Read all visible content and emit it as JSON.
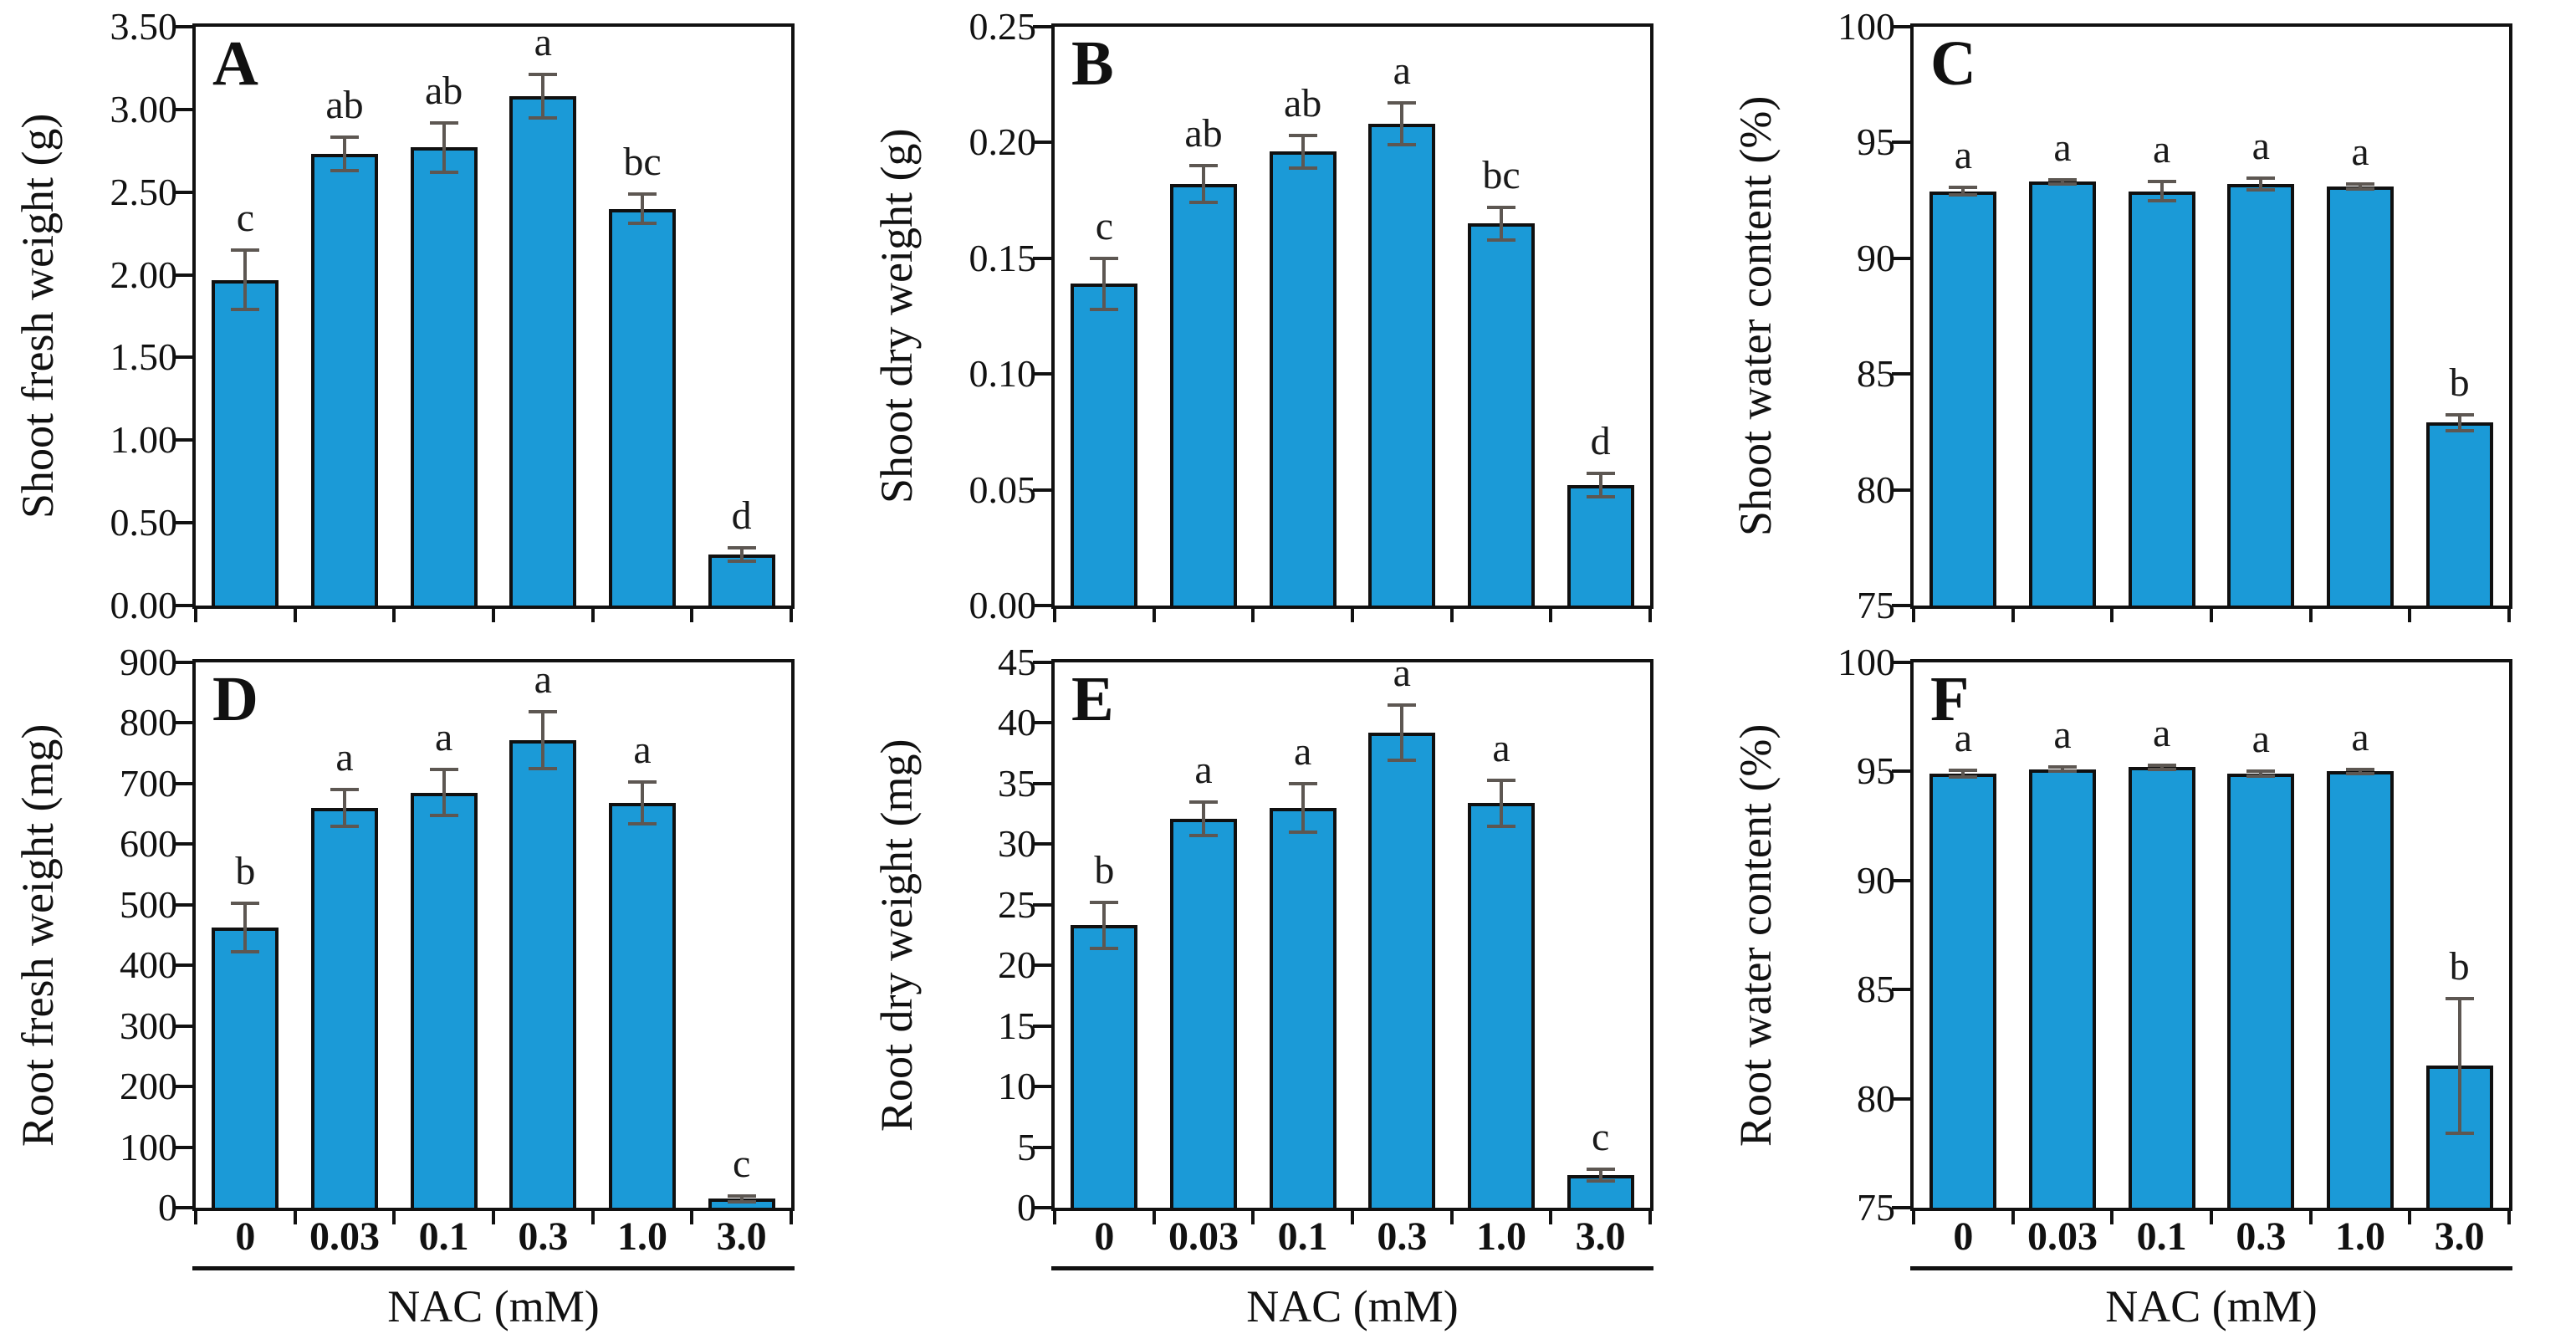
{
  "figure": {
    "layout": {
      "rows": 2,
      "cols": 3,
      "grid": "off",
      "legend": "none"
    },
    "x_axis_title": "NAC (mM)",
    "categories": [
      "0",
      "0.03",
      "0.1",
      "0.3",
      "1.0",
      "3.0"
    ]
  },
  "style": {
    "bar_fill": "#1b9ad7",
    "bar_edge": "#101010",
    "error_bar_color": "#5d5752",
    "axis_color": "#111111",
    "background": "#ffffff",
    "text_color": "#111111"
  },
  "chart_data": [
    {
      "type": "bar",
      "panel": "A",
      "ylabel": "Shoot fresh weight (g)",
      "categories": [
        "0",
        "0.03",
        "0.1",
        "0.3",
        "1.0",
        "3.0"
      ],
      "values": [
        1.97,
        2.73,
        2.77,
        3.08,
        2.4,
        0.31
      ],
      "errors": [
        0.18,
        0.1,
        0.15,
        0.13,
        0.09,
        0.04
      ],
      "sig_letters": [
        "c",
        "ab",
        "ab",
        "a",
        "bc",
        "d"
      ],
      "ylim": [
        0,
        3.5
      ],
      "ytick_step": 0.5,
      "ytick_decimals": 2,
      "show_x_tick_labels": false,
      "show_x_title": false
    },
    {
      "type": "bar",
      "panel": "B",
      "ylabel": "Shoot dry weight (g)",
      "categories": [
        "0",
        "0.03",
        "0.1",
        "0.3",
        "1.0",
        "3.0"
      ],
      "values": [
        0.139,
        0.182,
        0.196,
        0.208,
        0.165,
        0.052
      ],
      "errors": [
        0.011,
        0.008,
        0.007,
        0.009,
        0.007,
        0.005
      ],
      "sig_letters": [
        "c",
        "ab",
        "ab",
        "a",
        "bc",
        "d"
      ],
      "ylim": [
        0,
        0.25
      ],
      "ytick_step": 0.05,
      "ytick_decimals": 2,
      "show_x_tick_labels": false,
      "show_x_title": false
    },
    {
      "type": "bar",
      "panel": "C",
      "ylabel": "Shoot water content (%)",
      "categories": [
        "0",
        "0.03",
        "0.1",
        "0.3",
        "1.0",
        "3.0"
      ],
      "values": [
        92.9,
        93.3,
        92.9,
        93.2,
        93.1,
        82.9
      ],
      "errors": [
        0.15,
        0.1,
        0.4,
        0.25,
        0.1,
        0.35
      ],
      "sig_letters": [
        "a",
        "a",
        "a",
        "a",
        "a",
        "b"
      ],
      "ylim": [
        75,
        100
      ],
      "ytick_step": 5,
      "ytick_decimals": 0,
      "show_x_tick_labels": false,
      "show_x_title": false
    },
    {
      "type": "bar",
      "panel": "D",
      "ylabel": "Root fresh weight (mg)",
      "xlabel": "NAC (mM)",
      "categories": [
        "0",
        "0.03",
        "0.1",
        "0.3",
        "1.0",
        "3.0"
      ],
      "values": [
        463,
        660,
        685,
        772,
        668,
        15
      ],
      "errors": [
        40,
        30,
        38,
        47,
        34,
        5
      ],
      "sig_letters": [
        "b",
        "a",
        "a",
        "a",
        "a",
        "c"
      ],
      "ylim": [
        0,
        900
      ],
      "ytick_step": 100,
      "ytick_decimals": 0,
      "show_x_tick_labels": true,
      "show_x_title": true
    },
    {
      "type": "bar",
      "panel": "E",
      "ylabel": "Root dry weight (mg)",
      "xlabel": "NAC (mM)",
      "categories": [
        "0",
        "0.03",
        "0.1",
        "0.3",
        "1.0",
        "3.0"
      ],
      "values": [
        23.3,
        32.1,
        33.0,
        39.2,
        33.4,
        2.7
      ],
      "errors": [
        1.9,
        1.4,
        2.0,
        2.3,
        1.9,
        0.5
      ],
      "sig_letters": [
        "b",
        "a",
        "a",
        "a",
        "a",
        "c"
      ],
      "ylim": [
        0,
        45
      ],
      "ytick_step": 5,
      "ytick_decimals": 0,
      "show_x_tick_labels": true,
      "show_x_title": true
    },
    {
      "type": "bar",
      "panel": "F",
      "ylabel": "Root water content (%)",
      "xlabel": "NAC (mM)",
      "categories": [
        "0",
        "0.03",
        "0.1",
        "0.3",
        "1.0",
        "3.0"
      ],
      "values": [
        94.9,
        95.1,
        95.2,
        94.9,
        95.0,
        81.5
      ],
      "errors": [
        0.15,
        0.1,
        0.1,
        0.1,
        0.1,
        3.1
      ],
      "sig_letters": [
        "a",
        "a",
        "a",
        "a",
        "a",
        "b"
      ],
      "ylim": [
        75,
        100
      ],
      "ytick_step": 5,
      "ytick_decimals": 0,
      "show_x_tick_labels": true,
      "show_x_title": true
    }
  ]
}
